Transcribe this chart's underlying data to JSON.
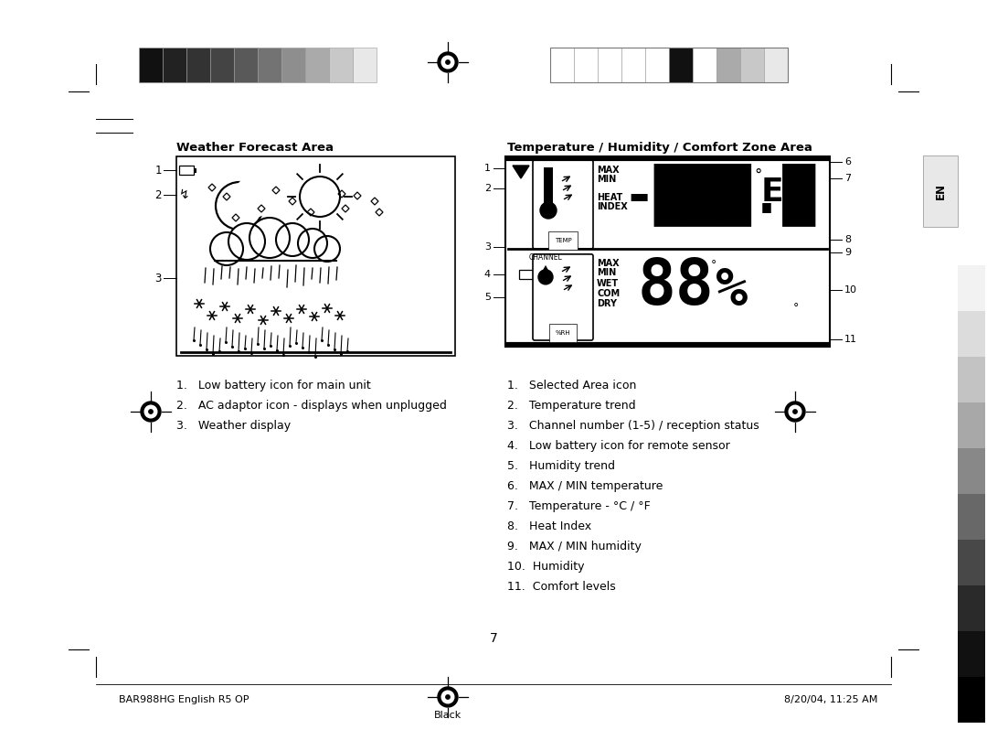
{
  "bg_color": "#ffffff",
  "title_left": "Weather Forecast Area",
  "title_right": "Temperature / Humidity / Comfort Zone Area",
  "left_items": [
    "1.   Low battery icon for main unit",
    "2.   AC adaptor icon - displays when unplugged",
    "3.   Weather display"
  ],
  "right_items": [
    "1.   Selected Area icon",
    "2.   Temperature trend",
    "3.   Channel number (1-5) / reception status",
    "4.   Low battery icon for remote sensor",
    "5.   Humidity trend",
    "6.   MAX / MIN temperature",
    "7.   Temperature - °C / °F",
    "8.   Heat Index",
    "9.   MAX / MIN humidity",
    "10.  Humidity",
    "11.  Comfort levels"
  ],
  "footer_left": "BAR988HG English R5 OP",
  "footer_center_num": "7",
  "footer_right": "8/20/04, 11:25 AM",
  "footer_black": "Black",
  "page_num": "7",
  "strip_left_colors": [
    "#111111",
    "#222222",
    "#333333",
    "#444444",
    "#595959",
    "#737373",
    "#8e8e8e",
    "#aaaaaa",
    "#c8c8c8",
    "#e8e8e8"
  ],
  "strip_right_colors": [
    "#ffffff",
    "#ffffff",
    "#ffffff",
    "#ffffff",
    "#ffffff",
    "#111111",
    "#ffffff",
    "#aaaaaa",
    "#c8c8c8",
    "#e8e8e8"
  ],
  "side_grays": [
    "#f2f2f2",
    "#dcdcdc",
    "#c3c3c3",
    "#a8a8a8",
    "#888888",
    "#686868",
    "#484848",
    "#2a2a2a",
    "#111111",
    "#000000"
  ]
}
